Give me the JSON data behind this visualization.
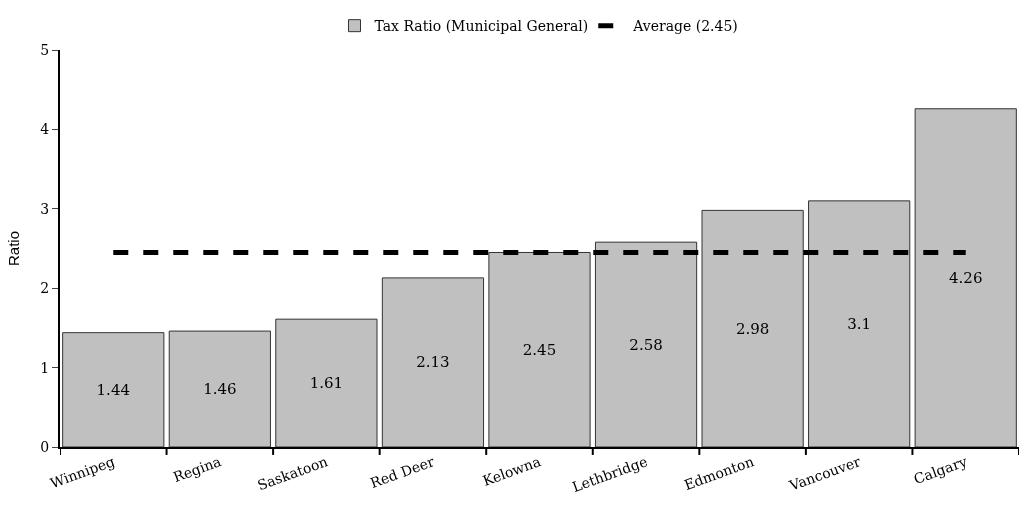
{
  "chart_data": {
    "type": "bar",
    "ylabel": "Ratio",
    "categories": [
      "Winnipeg",
      "Regina",
      "Saskatoon",
      "Red Deer",
      "Kelowna",
      "Lethbridge",
      "Edmonton",
      "Vancouver",
      "Calgary"
    ],
    "series": [
      {
        "name": "Tax Ratio (Municipal General)",
        "color": "#c0c0c0",
        "data_labels": true,
        "values": [
          1.44,
          1.46,
          1.61,
          2.13,
          2.45,
          2.58,
          2.98,
          3.1,
          4.26
        ]
      },
      {
        "name": "Average (2.45)",
        "type": "line",
        "color": "#000000",
        "line_style": "dashed",
        "marker": "none",
        "values": [
          2.45,
          2.45,
          2.45,
          2.45,
          2.45,
          2.45,
          2.45,
          2.45,
          2.45
        ]
      }
    ],
    "ylim": [
      0,
      5
    ],
    "yticks": [
      0,
      1,
      2,
      3,
      4,
      5
    ],
    "grid": false,
    "legend": "top"
  }
}
